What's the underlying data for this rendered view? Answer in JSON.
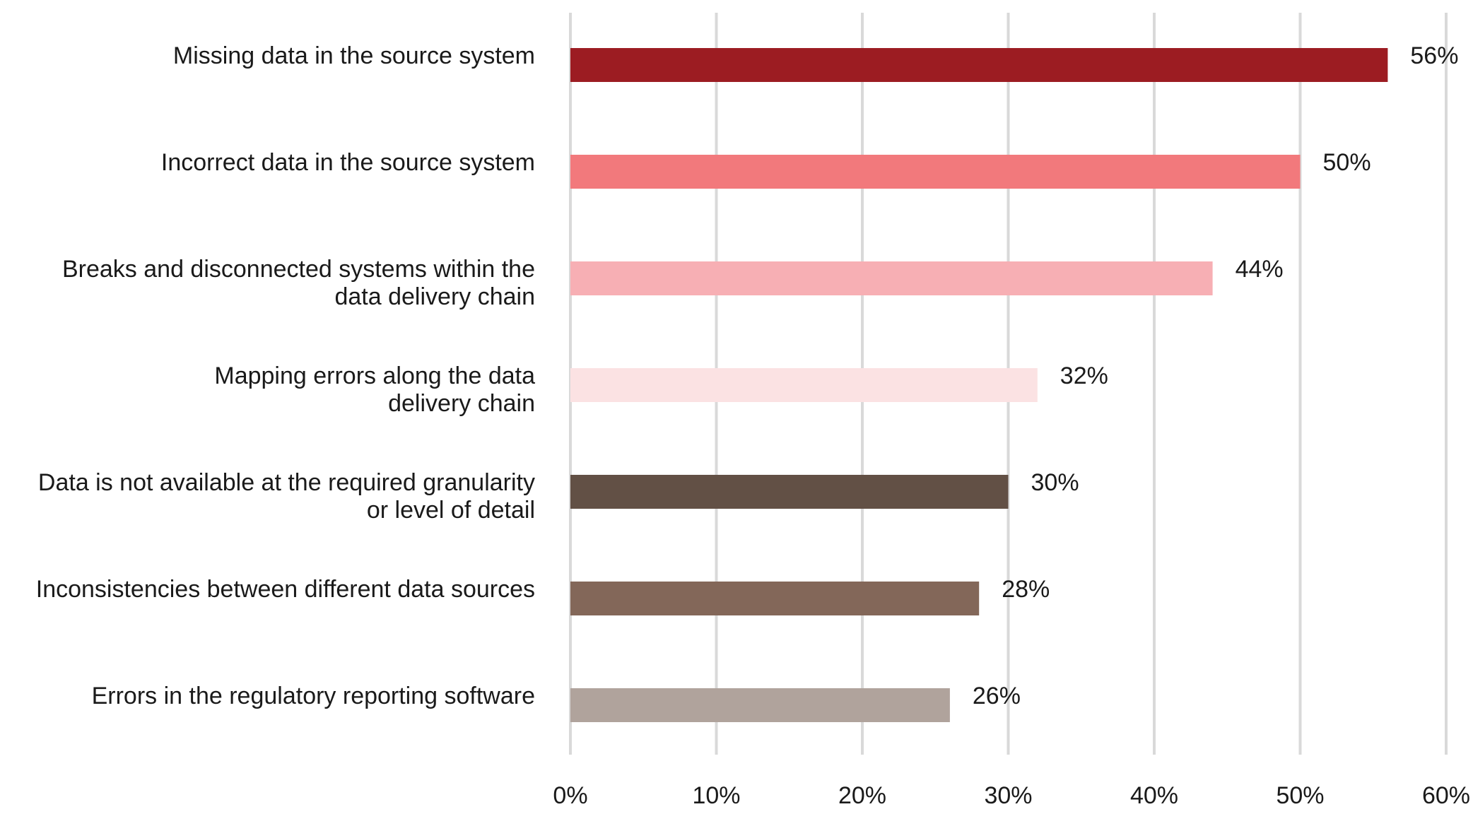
{
  "chart_data": {
    "type": "bar",
    "orientation": "horizontal",
    "categories": [
      [
        "Missing data in the source system"
      ],
      [
        "Incorrect data in the source system"
      ],
      [
        "Breaks and disconnected systems within the",
        "data delivery chain"
      ],
      [
        "Mapping errors along the data",
        "delivery chain"
      ],
      [
        "Data is not available at the required granularity",
        "or level of detail"
      ],
      [
        "Inconsistencies between different data sources"
      ],
      [
        "Errors in the regulatory reporting software"
      ]
    ],
    "values": [
      56,
      50,
      44,
      32,
      30,
      28,
      26
    ],
    "value_labels": [
      "56%",
      "50%",
      "44%",
      "32%",
      "30%",
      "28%",
      "26%"
    ],
    "bar_colors": [
      "#9c1c22",
      "#f2797c",
      "#f7afb4",
      "#fbe2e3",
      "#625045",
      "#836759",
      "#b0a39c"
    ],
    "xlim": [
      0,
      60
    ],
    "x_ticks": [
      0,
      10,
      20,
      30,
      40,
      50,
      60
    ],
    "x_tick_labels": [
      "0%",
      "10%",
      "20%",
      "30%",
      "40%",
      "50%",
      "60%"
    ],
    "grid": true,
    "grid_color": "#d9d9d9",
    "legend": "none",
    "title": "",
    "xlabel": "",
    "ylabel": ""
  }
}
